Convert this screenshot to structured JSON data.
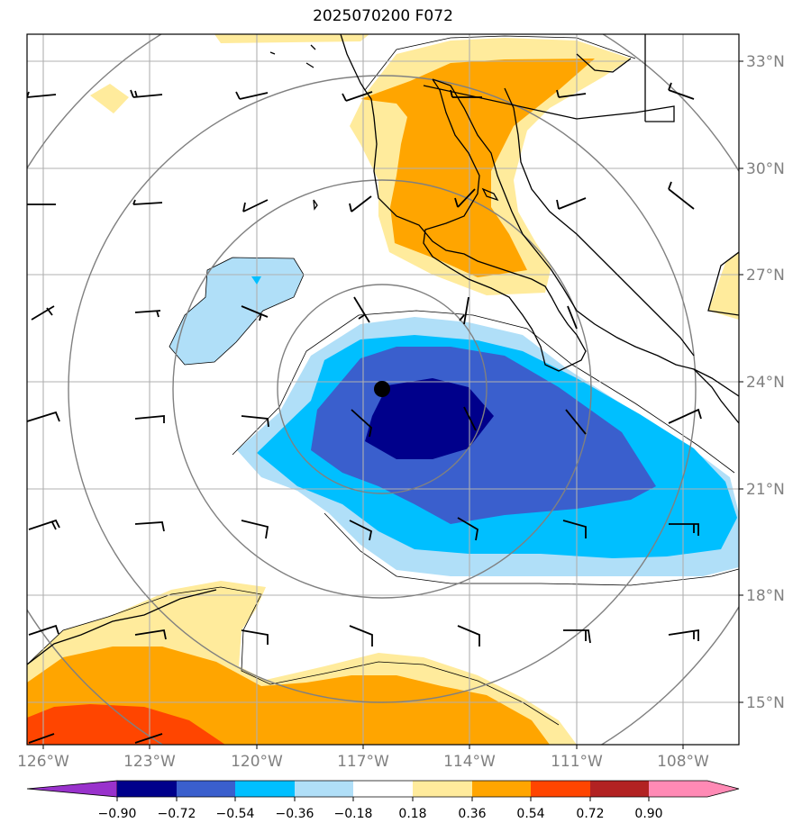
{
  "title": "2025070200 F072",
  "lon_labels": [
    "126°W",
    "123°W",
    "120°W",
    "117°W",
    "114°W",
    "111°W",
    "108°W"
  ],
  "lat_labels": [
    "33°N",
    "30°N",
    "27°N",
    "24°N",
    "21°N",
    "18°N",
    "15°N"
  ],
  "colorbar": {
    "ticks": [
      "−0.90",
      "−0.72",
      "−0.54",
      "−0.36",
      "−0.18",
      "0.18",
      "0.36",
      "0.54",
      "0.72",
      "0.90"
    ],
    "colors": {
      "under": "#9932cc",
      "b1": "#00008b",
      "b2": "#3a5fcd",
      "b3": "#00bfff",
      "b4": "#b0dff8",
      "b5": "#ffffff",
      "b6": "#ffeb9c",
      "b7": "#ffa500",
      "b8": "#ff4500",
      "b9": "#b22222",
      "over": "#ff8ab5"
    }
  },
  "colors": {
    "grid": "#b0b0b0",
    "range_rings": "#808080",
    "coast": "#000000",
    "tick_label": "#808080"
  },
  "storm_center": {
    "lon": -116.0,
    "lat": 23.8
  }
}
